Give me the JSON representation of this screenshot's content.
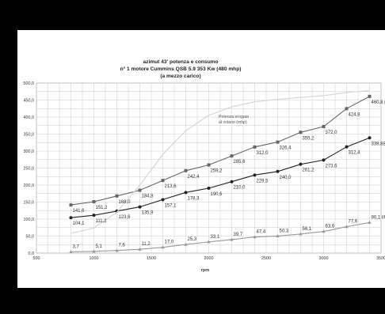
{
  "chart_data": {
    "type": "line",
    "title_lines": [
      "azimut 43' potenza e consumo",
      "n° 1 motore Cummins QSB 5.9 353 Kw (480 mhp)",
      "(a mezzo carico)"
    ],
    "xlabel": "rpm",
    "ylabel": "",
    "xlim": [
      500,
      3500
    ],
    "ylim": [
      0,
      500
    ],
    "x_ticks": [
      500,
      1000,
      1500,
      2000,
      2500,
      3000,
      3500
    ],
    "y_ticks": [
      "0,0",
      "50,0",
      "100,0",
      "150,0",
      "200,0",
      "250,0",
      "300,0",
      "350,0",
      "400,0",
      "450,0",
      "500,0"
    ],
    "grid": true,
    "annotation": [
      "Potenza erogata",
      "al volano (mhp)"
    ],
    "series": [
      {
        "color": "#666666",
        "marker": "square",
        "x": [
          800,
          1000,
          1200,
          1400,
          1600,
          1800,
          2000,
          2200,
          2400,
          2600,
          2800,
          3000,
          3200,
          3400
        ],
        "values": [
          141.6,
          151.2,
          168.0,
          184.8,
          213.6,
          242.4,
          259.2,
          285.6,
          312.0,
          326.4,
          355.2,
          372.0,
          424.8,
          460.8
        ],
        "labels": [
          "141,6",
          "151,2",
          "168,0",
          "184,8",
          "213,6",
          "242,4",
          "259,2",
          "285,6",
          "312,0",
          "326,4",
          "355,2",
          "372,0",
          "424,8",
          "460,8 mhp"
        ]
      },
      {
        "color": "#222222",
        "marker": "circle",
        "x": [
          800,
          1000,
          1200,
          1400,
          1600,
          1800,
          2000,
          2200,
          2400,
          2600,
          2800,
          3000,
          3200,
          3400
        ],
        "values": [
          104.1,
          111.2,
          123.6,
          135.9,
          157.1,
          178.3,
          190.6,
          210.0,
          229.5,
          240.0,
          261.2,
          273.6,
          312.4,
          338.88
        ],
        "labels": [
          "104,1",
          "111,2",
          "123,6",
          "135,9",
          "157,1",
          "178,3",
          "190,6",
          "210,0",
          "229,5",
          "240,0",
          "261,2",
          "273,6",
          "312,4",
          "338,88 kw"
        ]
      },
      {
        "color": "#999999",
        "marker": "triangle",
        "x": [
          800,
          1000,
          1200,
          1400,
          1600,
          1800,
          2000,
          2200,
          2400,
          2600,
          2800,
          3000,
          3200,
          3400
        ],
        "values": [
          3.7,
          5.1,
          7.6,
          11.2,
          17.0,
          25.3,
          33.1,
          39.7,
          47.4,
          50.3,
          56.1,
          63.6,
          77.6,
          90.1
        ],
        "labels": [
          "3,7",
          "5,1",
          "7,6",
          "11,2",
          "17,0",
          "25,3",
          "33,1",
          "39,7",
          "47,4",
          "50,3",
          "56,1",
          "63,6",
          "77,6",
          "90,1 l/h"
        ]
      },
      {
        "color": "#d8d8d8",
        "marker": "none",
        "x": [
          800,
          1000,
          1200,
          1400,
          1600,
          1800,
          2000,
          2200,
          2400,
          2600,
          2800,
          3000,
          3200,
          3400
        ],
        "values": [
          58,
          74,
          120,
          200,
          290,
          360,
          405,
          430,
          445,
          452,
          458,
          463,
          472,
          478
        ],
        "labels": []
      }
    ]
  }
}
